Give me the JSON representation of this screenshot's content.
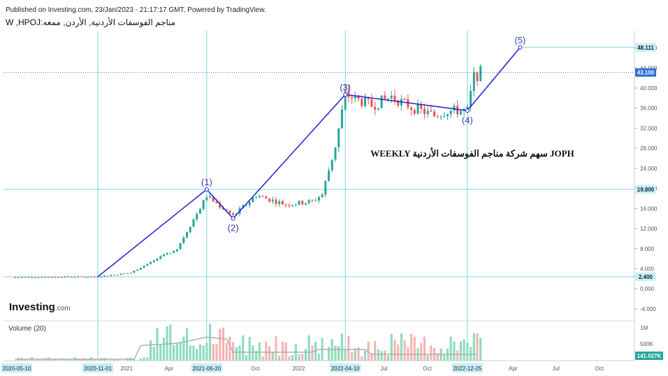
{
  "header": {
    "published": "Published on Investing.com, 23/Jan/2023 - 21:17:17 GMT, Powered by TradingView.",
    "symbol_line": "W ,HPOJ:مناجم الفوسفات الأردنية, الأردن, ممعه"
  },
  "annotation": "WEEKLY سهم شركة مناجم الفوسفات الأردنية JOPH",
  "logo": {
    "text": "Investing",
    "suffix": ".com"
  },
  "volume_label": "Volume (20)",
  "colors": {
    "up": "#26a69a",
    "down": "#ef5350",
    "up_volume": "#8fdcc0",
    "down_volume": "#f5b5b5",
    "wave": "#2a2ad8",
    "level": "#7fd3e3",
    "price_tag": "#2e6fd6",
    "axis_text": "#555555",
    "volume_ma": "#b0b0b0"
  },
  "chart_data": {
    "type": "candlestick",
    "title": "",
    "price_axis": {
      "ticks": [
        "48.000",
        "44.000",
        "40.000",
        "36.000",
        "32.000",
        "28.000",
        "24.000",
        "20.000",
        "16.000",
        "12.000",
        "8.000",
        "4.000",
        "0.000",
        "-4.000"
      ],
      "range": [
        -6,
        54
      ]
    },
    "price_tags": [
      {
        "value": 48.111,
        "text": "48.111",
        "style": "level"
      },
      {
        "value": 43.1,
        "text": "43.100",
        "style": "current"
      },
      {
        "value": 19.8,
        "text": "19.800",
        "style": "level"
      },
      {
        "value": 2.4,
        "text": "2.400",
        "style": "level"
      }
    ],
    "volume_axis": {
      "ticks": [
        "1M",
        "500K"
      ],
      "last_value": "141.027K"
    },
    "time_axis": {
      "ticks": [
        "2021",
        "Apr",
        "Oct",
        "2022",
        "Jul",
        "Oct",
        "Apr",
        "Jul",
        "Oct"
      ],
      "highlighted": [
        "2020-05-10",
        "2020-11-01",
        "2021-06-20",
        "2022-04-10",
        "2022-12-25"
      ]
    },
    "elliott_waves": [
      {
        "label": "(1)",
        "date": "2021-06-20",
        "value": 19.8
      },
      {
        "label": "(2)",
        "date": "2021-08-15",
        "value": 14.0
      },
      {
        "label": "(3)",
        "date": "2022-04-10",
        "value": 38.7
      },
      {
        "label": "(4)",
        "date": "2022-12-25",
        "value": 35.5
      },
      {
        "label": "(5)",
        "date": "2023-04-16",
        "value": 48.111
      }
    ],
    "wave_start": {
      "date": "2020-11-01",
      "value": 2.4
    },
    "horizontal_levels": [
      48.111,
      19.8,
      2.4
    ],
    "vertical_markers": [
      "2020-11-01",
      "2021-06-20",
      "2022-04-10",
      "2022-12-25"
    ]
  }
}
